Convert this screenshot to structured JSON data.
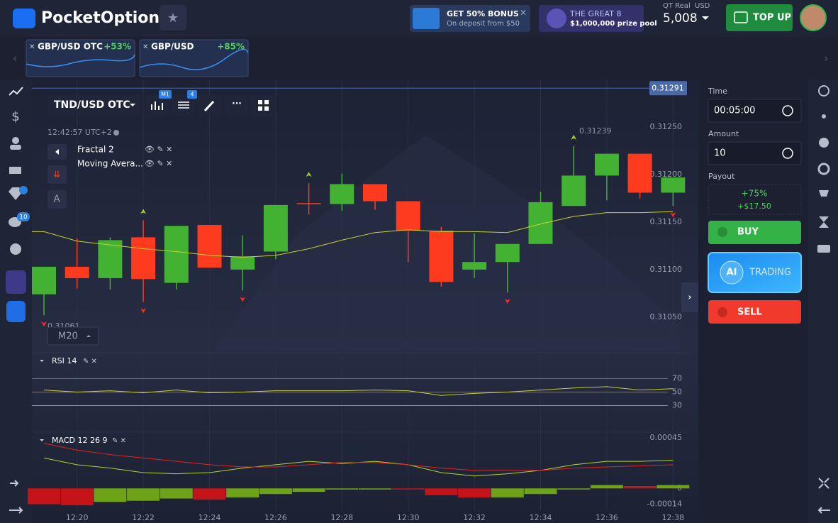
{
  "header": {
    "brand": "PocketOption",
    "bonus": {
      "title": "GET 50% BONUS",
      "subtitle": "On deposit from $50"
    },
    "promo": {
      "title": "THE GREAT 8",
      "subtitle": "$1,000,000 prize pool"
    },
    "account": "QT Real",
    "currency": "USD",
    "balance": "5,008",
    "top_up": "TOP UP"
  },
  "tabs": [
    {
      "name": "GBP/USD OTC",
      "change": "+53%"
    },
    {
      "name": "GBP/USD",
      "change": "+85%"
    }
  ],
  "sidebar": {
    "badge": "10"
  },
  "toolbar": {
    "asset": "TND/USD OTC",
    "timeframe_badge": "M1",
    "indicator_badge": "4",
    "clock": "12:42:57 UTC+2",
    "indicators": [
      "Fractal 2",
      "Moving Avera..."
    ],
    "font_button": "A",
    "timeframe": "M20"
  },
  "trade": {
    "time_label": "Time",
    "time": "00:05:00",
    "amount_label": "Amount",
    "amount": "10",
    "payout_label": "Payout",
    "payout_percent": "+75%",
    "payout_amount": "+$17.50",
    "buy": "BUY",
    "ai": "AI",
    "ai_label": "TRADING",
    "sell": "SELL"
  },
  "chart": {
    "type": "candlestick",
    "categories": [
      null,
      "12:20",
      null,
      "12:22",
      null,
      "12:24",
      null,
      "12:26",
      null,
      "12:28",
      null,
      "12:30",
      null,
      "12:32",
      null,
      "12:34",
      null,
      "12:36",
      null,
      "12:38"
    ],
    "open": [
      0.31074,
      0.31103,
      0.31091,
      0.31134,
      0.31086,
      0.31147,
      0.311,
      0.31119,
      0.3117,
      0.31169,
      0.3119,
      0.31172,
      0.31141,
      0.311,
      0.31108,
      0.31127,
      0.31167,
      0.31199,
      0.31222,
      0.31181
    ],
    "high": [
      0.31103,
      0.31133,
      0.31134,
      0.31152,
      0.31146,
      0.31147,
      0.31136,
      0.31168,
      0.31191,
      0.31201,
      0.3119,
      0.31172,
      0.31145,
      0.31138,
      0.31127,
      0.31182,
      0.3123,
      0.31222,
      0.31222,
      0.31197
    ],
    "low": [
      0.31052,
      0.3108,
      0.31079,
      0.31066,
      0.31079,
      0.31102,
      0.31078,
      0.31111,
      0.31158,
      0.31162,
      0.31163,
      0.31108,
      0.31082,
      0.31091,
      0.31076,
      0.31127,
      0.31167,
      0.31173,
      0.31175,
      0.31167
    ],
    "close": [
      0.31103,
      0.31091,
      0.31131,
      0.3109,
      0.31146,
      0.31102,
      0.31114,
      0.31168,
      0.31169,
      0.3119,
      0.31172,
      0.31141,
      0.31087,
      0.31108,
      0.31127,
      0.31171,
      0.31199,
      0.31222,
      0.31181,
      0.31197
    ],
    "up_color": "#43b233",
    "down_color": "#ff3b1f",
    "ma": {
      "color": "#c6d12c",
      "values": [
        0.3114,
        0.3113,
        0.31126,
        0.31122,
        0.31119,
        0.31115,
        0.31113,
        0.31115,
        0.31122,
        0.31131,
        0.31139,
        0.31142,
        0.3114,
        0.3114,
        0.31139,
        0.31148,
        0.31156,
        0.3116,
        0.3116,
        0.31161
      ]
    },
    "fractals": {
      "up": [
        3,
        8,
        16
      ],
      "down": [
        0,
        3,
        6,
        14,
        19
      ],
      "up_color": "#9bd22b",
      "down_color": "#ff2a1a"
    },
    "ylim": [
      0.31014,
      0.31283
    ],
    "yticks": [
      {
        "value": 0.3125,
        "label": "0.31250"
      },
      {
        "value": 0.312,
        "label": "0.31200"
      },
      {
        "value": 0.3115,
        "label": "0.31150"
      },
      {
        "value": 0.311,
        "label": "0.31100"
      },
      {
        "value": 0.3105,
        "label": "0.31050"
      }
    ],
    "current_price": {
      "value": 0.31291,
      "label": "0.31291"
    },
    "high_label": "0.31239",
    "low_label": "0.31061"
  },
  "rsi": {
    "title": "RSI 14",
    "color": "#c3cc37",
    "values": [
      53,
      50,
      52,
      49,
      53,
      49,
      50,
      52,
      52,
      52,
      53,
      52,
      45,
      48,
      50,
      53,
      56,
      58,
      53,
      55
    ],
    "ylim": [
      0,
      100
    ],
    "yticks": [
      70,
      50,
      30
    ],
    "tick_colors": [
      "#2f8f5f",
      "#777",
      "#9b9b2a"
    ]
  },
  "macd": {
    "title": "MACD 12 26 9",
    "macd_color": "#b7d22a",
    "signal_color": "#e0241e",
    "macd": [
      0.00027,
      0.00021,
      0.00018,
      0.00014,
      0.00013,
      0.00014,
      0.00018,
      0.00021,
      0.00024,
      0.00022,
      0.00024,
      0.00021,
      0.00014,
      0.00011,
      0.00013,
      0.00016,
      0.00021,
      0.00024,
      0.00024,
      0.00025
    ],
    "signal": [
      0.0004,
      0.00034,
      0.0003,
      0.00027,
      0.00024,
      0.00021,
      0.00019,
      0.00019,
      0.00021,
      0.00023,
      0.00023,
      0.00021,
      0.00018,
      0.00016,
      0.00016,
      0.00016,
      0.00018,
      0.00019,
      0.0002,
      0.00021
    ],
    "histogram": [
      -0.00014,
      -0.00015,
      -0.00012,
      -0.00011,
      -9e-05,
      -0.0001,
      -8e-05,
      -5e-05,
      -3e-05,
      -1e-05,
      -1e-05,
      -1e-05,
      -6e-05,
      -8e-05,
      -8e-05,
      -5e-05,
      -1e-05,
      3e-05,
      2e-05,
      3e-05
    ],
    "histogram_colors": [
      "#c4141a",
      "#c4141a",
      "#6fa317",
      "#6fa317",
      "#6fa317",
      "#c4141a",
      "#6fa317",
      "#6fa317",
      "#6fa317",
      "#6fa317",
      "#6fa317",
      "#c4141a",
      "#c4141a",
      "#c4141a",
      "#6fa317",
      "#6fa317",
      "#6fa317",
      "#6fa317",
      "#c4141a",
      "#6fa317"
    ],
    "ylim": [
      -0.0002,
      0.00048
    ],
    "yticks": [
      {
        "value": 0.00045,
        "label": "0.00045"
      },
      0,
      {
        "value": -0.00014,
        "label": "-0.00014"
      }
    ]
  }
}
